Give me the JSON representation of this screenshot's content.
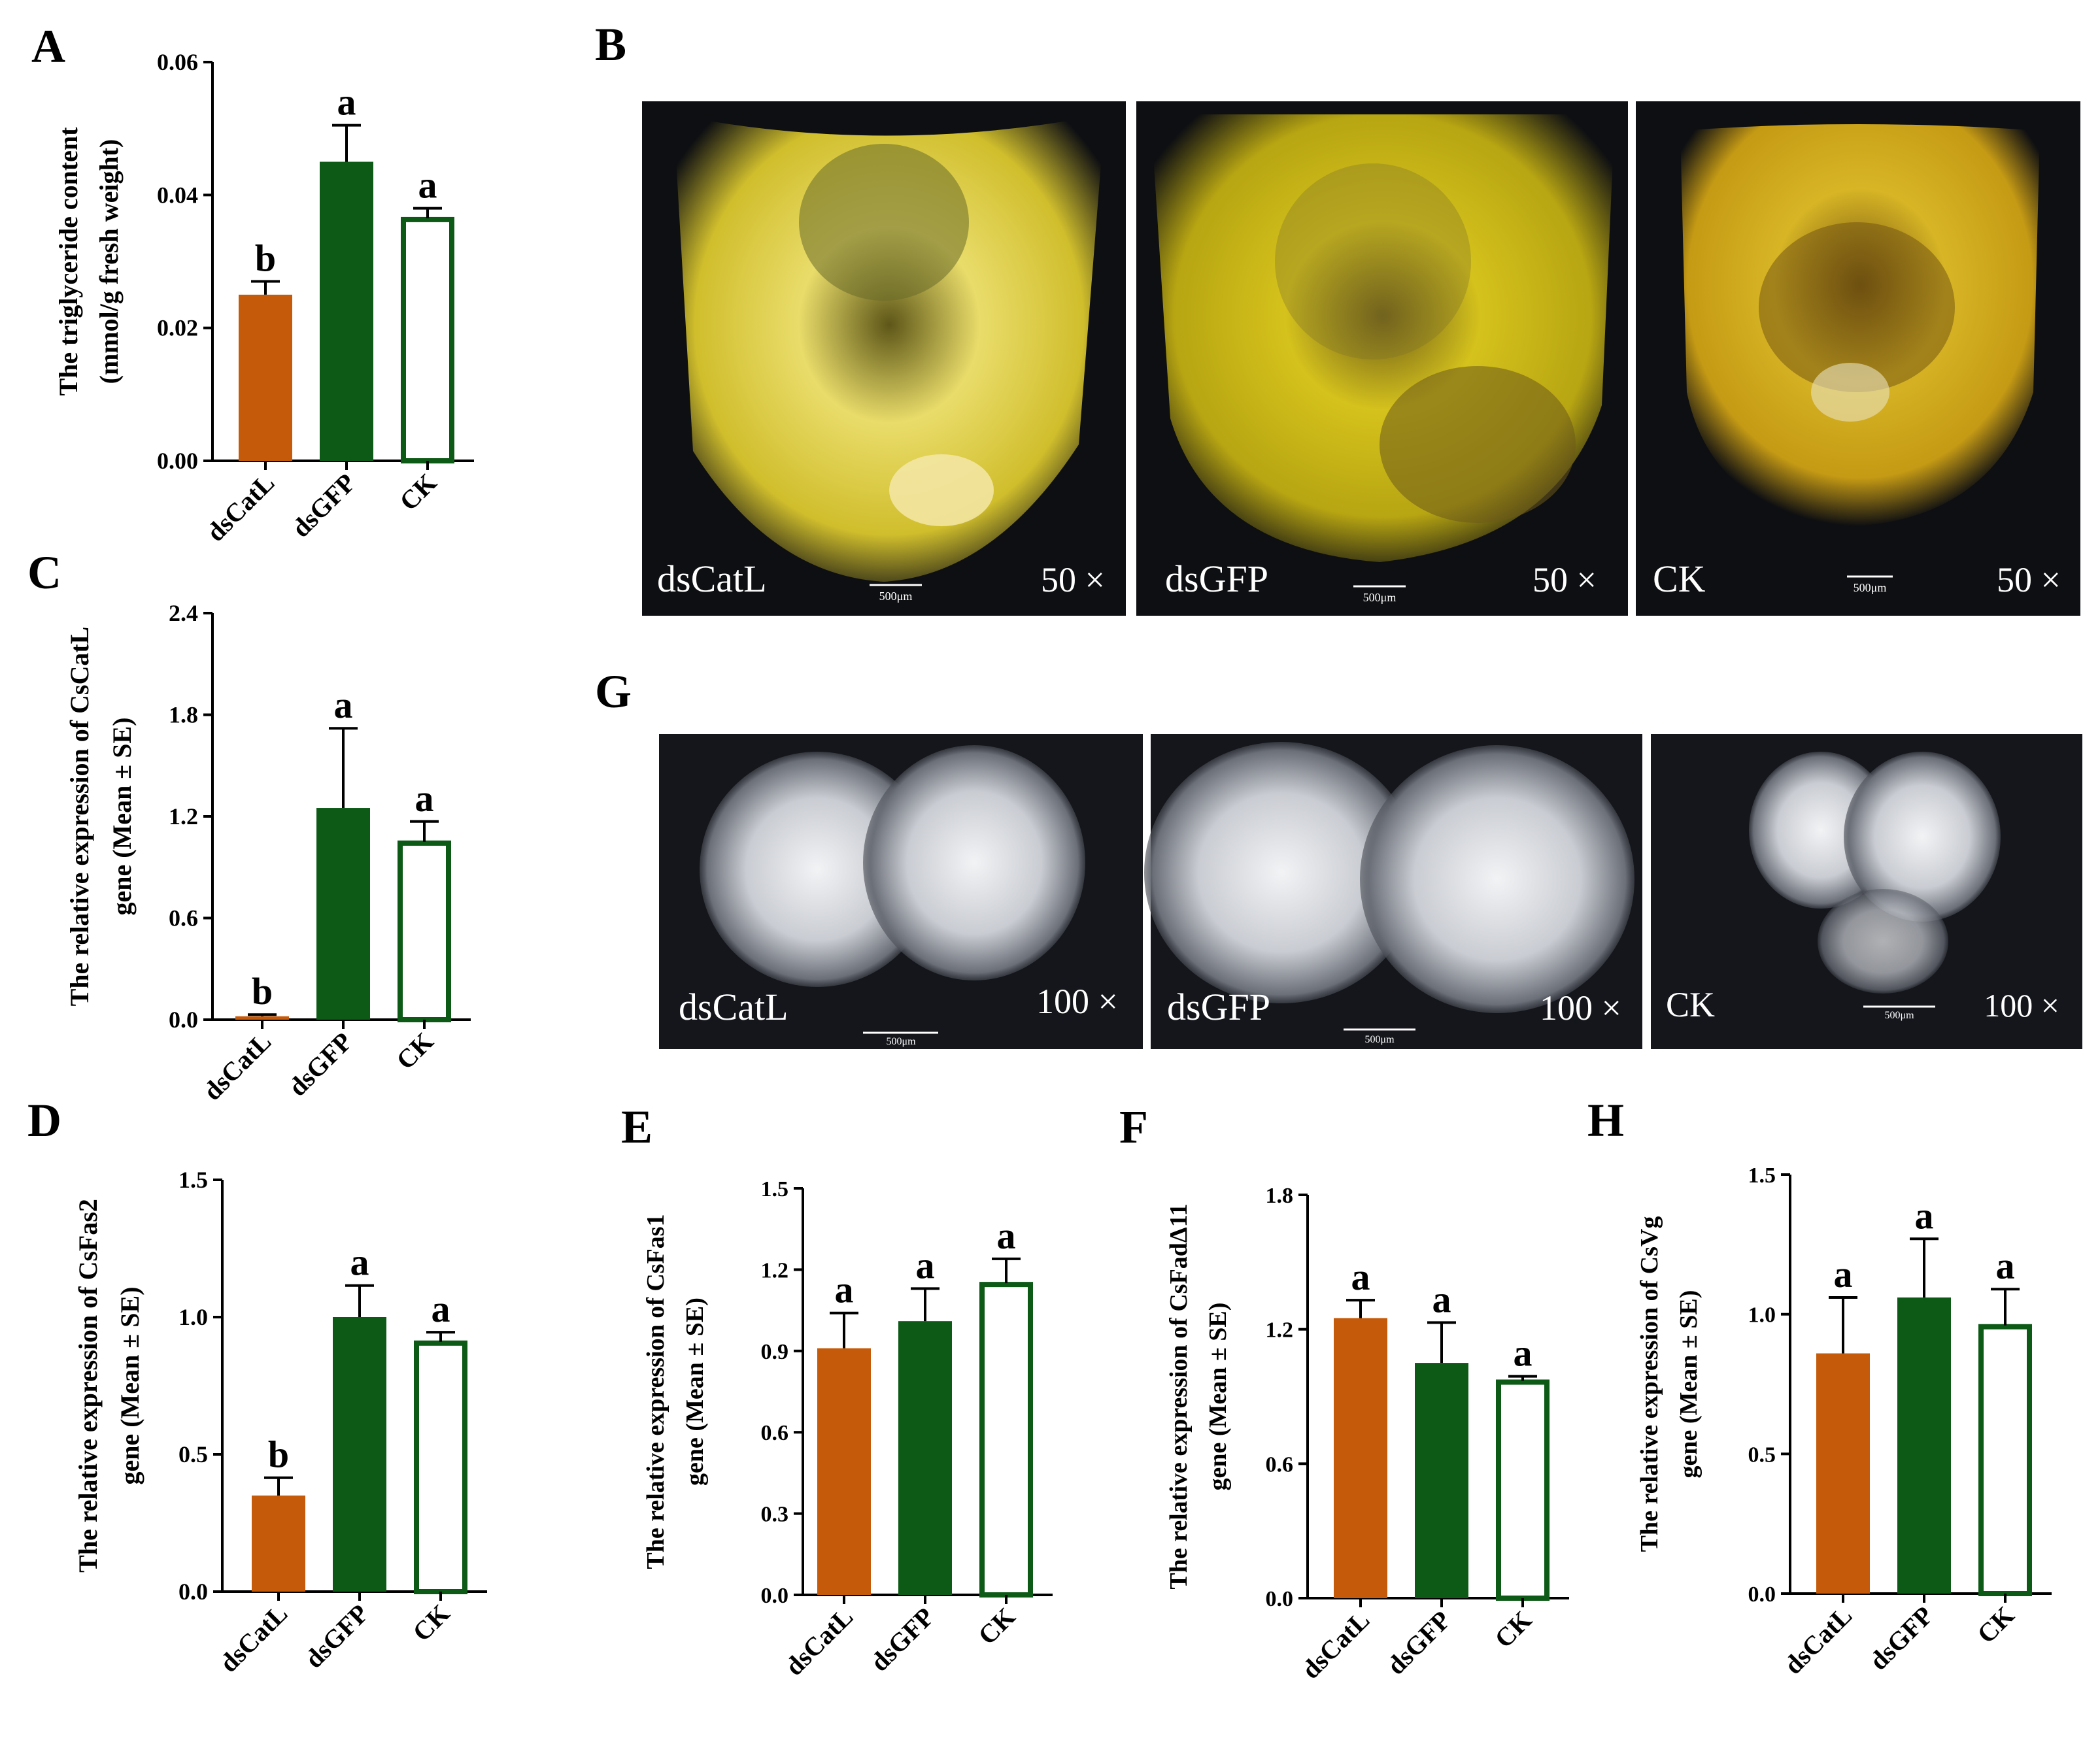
{
  "figure": {
    "panel_letters": {
      "A": "A",
      "B": "B",
      "C": "C",
      "D": "D",
      "E": "E",
      "F": "F",
      "G": "G",
      "H": "H"
    },
    "colors": {
      "dsCatL": "#c45a0a",
      "dsGFP": "#0d5a17",
      "CK": "#ffffff",
      "CK_edge": "#0d5a17",
      "axis": "#000000"
    },
    "photo_row_B": {
      "magnification": "50 ×",
      "scale_bar": "500μm",
      "photos": [
        {
          "label": "dsCatL",
          "colors": [
            "#e9dc6a",
            "#d0be2c",
            "#f6f0c4",
            "#5d5618"
          ]
        },
        {
          "label": "dsGFP",
          "colors": [
            "#d5c21c",
            "#b7a512",
            "#e9e3b4",
            "#6b5a1a"
          ]
        },
        {
          "label": "CK",
          "colors": [
            "#d7b525",
            "#c59a14",
            "#eae2c0",
            "#6e4f10"
          ]
        }
      ]
    },
    "photo_row_G": {
      "magnification": "100 ×",
      "scale_bar": "500μm",
      "photos": [
        {
          "label": "dsCatL"
        },
        {
          "label": "dsGFP"
        },
        {
          "label": "CK"
        }
      ]
    }
  },
  "chart_data": [
    {
      "panel": "A",
      "type": "bar",
      "categories": [
        "dsCatL",
        "dsGFP",
        "CK"
      ],
      "values": [
        0.025,
        0.045,
        0.0365
      ],
      "errors": [
        0.002,
        0.0055,
        0.0015
      ],
      "significance": [
        "b",
        "a",
        "a"
      ],
      "ylabel_lines": [
        "The triglyceride content",
        "(mmol/g fresh weight)"
      ],
      "ylim": [
        0,
        0.06
      ],
      "yticks": [
        "0.00",
        "0.02",
        "0.04",
        "0.06"
      ]
    },
    {
      "panel": "C",
      "type": "bar",
      "categories": [
        "dsCatL",
        "dsGFP",
        "CK"
      ],
      "values": [
        0.02,
        1.25,
        1.05
      ],
      "errors": [
        0.01,
        0.47,
        0.12
      ],
      "significance": [
        "b",
        "a",
        "a"
      ],
      "ylabel_lines": [
        "The relative expression of CsCatL",
        "gene  (Mean ± SE)"
      ],
      "ylim": [
        0,
        2.4
      ],
      "yticks": [
        "0.0",
        "0.6",
        "1.2",
        "1.8",
        "2.4"
      ]
    },
    {
      "panel": "D",
      "type": "bar",
      "categories": [
        "dsCatL",
        "dsGFP",
        "CK"
      ],
      "values": [
        0.35,
        1.0,
        0.91
      ],
      "errors": [
        0.065,
        0.115,
        0.035
      ],
      "significance": [
        "b",
        "a",
        "a"
      ],
      "ylabel_lines": [
        "The relative expression of CsFas2",
        "gene (Mean ± SE)"
      ],
      "ylim": [
        0,
        1.5
      ],
      "yticks": [
        "0.0",
        "0.5",
        "1.0",
        "1.5"
      ]
    },
    {
      "panel": "E",
      "type": "bar",
      "categories": [
        "dsCatL",
        "dsGFP",
        "CK"
      ],
      "values": [
        0.91,
        1.01,
        1.15
      ],
      "errors": [
        0.13,
        0.12,
        0.09
      ],
      "significance": [
        "a",
        "a",
        "a"
      ],
      "ylabel_lines": [
        "The relative expression of CsFas1",
        "gene (Mean ± SE)"
      ],
      "ylim": [
        0,
        1.5
      ],
      "yticks": [
        "0.0",
        "0.3",
        "0.6",
        "0.9",
        "1.2",
        "1.5"
      ]
    },
    {
      "panel": "F",
      "type": "bar",
      "categories": [
        "dsCatL",
        "dsGFP",
        "CK"
      ],
      "values": [
        1.25,
        1.05,
        0.97
      ],
      "errors": [
        0.08,
        0.18,
        0.02
      ],
      "significance": [
        "a",
        "a",
        "a"
      ],
      "ylabel_lines": [
        "The relative expression of CsFadΔ11",
        "gene  (Mean ± SE)"
      ],
      "ylim": [
        0,
        1.8
      ],
      "yticks": [
        "0.0",
        "0.6",
        "1.2",
        "1.8"
      ]
    },
    {
      "panel": "H",
      "type": "bar",
      "categories": [
        "dsCatL",
        "dsGFP",
        "CK"
      ],
      "values": [
        0.86,
        1.06,
        0.96
      ],
      "errors": [
        0.2,
        0.21,
        0.13
      ],
      "significance": [
        "a",
        "a",
        "a"
      ],
      "ylabel_lines": [
        "The relative expression of CsVg",
        "gene  (Mean ± SE)"
      ],
      "ylim": [
        0,
        1.5
      ],
      "yticks": [
        "0.0",
        "0.5",
        "1.0",
        "1.5"
      ]
    }
  ]
}
